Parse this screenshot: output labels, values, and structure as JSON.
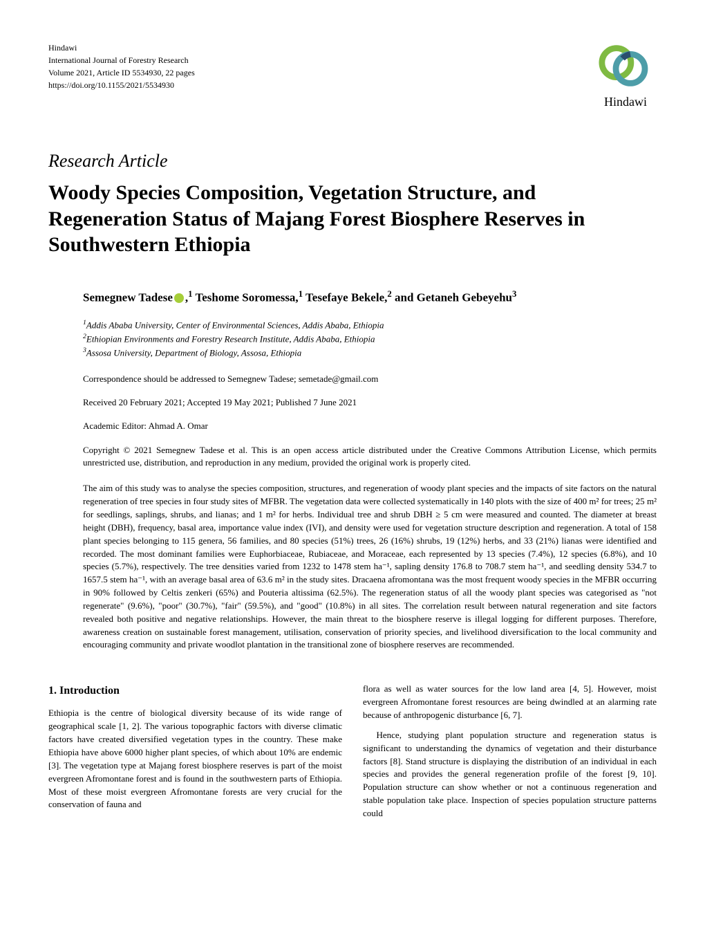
{
  "journal": {
    "publisher": "Hindawi",
    "name": "International Journal of Forestry Research",
    "volume": "Volume 2021, Article ID 5534930, 22 pages",
    "doi": "https://doi.org/10.1155/2021/5534930"
  },
  "logo": {
    "text": "Hindawi",
    "colors": {
      "green": "#7fba42",
      "teal": "#4d9da8",
      "navy": "#2a4e6e"
    }
  },
  "article_type": "Research Article",
  "title": "Woody Species Composition, Vegetation Structure, and Regeneration Status of Majang Forest Biosphere Reserves in Southwestern Ethiopia",
  "authors": {
    "text_parts": [
      "Semegnew Tadese",
      ",",
      " Teshome Soromessa,",
      " Tesefaye Bekele,",
      " and Getaneh Gebeyehu"
    ],
    "superscripts": [
      "1",
      "1",
      "2",
      "3"
    ]
  },
  "affiliations": [
    "Addis Ababa University, Center of Environmental Sciences, Addis Ababa, Ethiopia",
    "Ethiopian Environments and Forestry Research Institute, Addis Ababa, Ethiopia",
    "Assosa University, Department of Biology, Assosa, Ethiopia"
  ],
  "correspondence": "Correspondence should be addressed to Semegnew Tadese; semetade@gmail.com",
  "dates": "Received 20 February 2021; Accepted 19 May 2021; Published 7 June 2021",
  "editor": "Academic Editor: Ahmad A. Omar",
  "copyright": "Copyright © 2021 Semegnew Tadese et al. This is an open access article distributed under the Creative Commons Attribution License, which permits unrestricted use, distribution, and reproduction in any medium, provided the original work is properly cited.",
  "abstract": "The aim of this study was to analyse the species composition, structures, and regeneration of woody plant species and the impacts of site factors on the natural regeneration of tree species in four study sites of MFBR. The vegetation data were collected systematically in 140 plots with the size of 400 m² for trees; 25 m² for seedlings, saplings, shrubs, and lianas; and 1 m² for herbs. Individual tree and shrub DBH ≥ 5 cm were measured and counted. The diameter at breast height (DBH), frequency, basal area, importance value index (IVI), and density were used for vegetation structure description and regeneration. A total of 158 plant species belonging to 115 genera, 56 families, and 80 species (51%) trees, 26 (16%) shrubs, 19 (12%) herbs, and 33 (21%) lianas were identified and recorded. The most dominant families were Euphorbiaceae, Rubiaceae, and Moraceae, each represented by 13 species (7.4%), 12 species (6.8%), and 10 species (5.7%), respectively. The tree densities varied from 1232 to 1478 stem ha⁻¹, sapling density 176.8 to 708.7 stem ha⁻¹, and seedling density 534.7 to 1657.5 stem ha⁻¹, with an average basal area of 63.6 m² in the study sites. Dracaena afromontana was the most frequent woody species in the MFBR occurring in 90% followed by Celtis zenkeri (65%) and Pouteria altissima (62.5%). The regeneration status of all the woody plant species was categorised as \"not regenerate\" (9.6%), \"poor\" (30.7%), \"fair\" (59.5%), and \"good\" (10.8%) in all sites. The correlation result between natural regeneration and site factors revealed both positive and negative relationships. However, the main threat to the biosphere reserve is illegal logging for different purposes. Therefore, awareness creation on sustainable forest management, utilisation, conservation of priority species, and livelihood diversification to the local community and encouraging community and private woodlot plantation in the transitional zone of biosphere reserves are recommended.",
  "section_heading": "1. Introduction",
  "column_left": "Ethiopia is the centre of biological diversity because of its wide range of geographical scale [1, 2]. The various topographic factors with diverse climatic factors have created diversified vegetation types in the country. These make Ethiopia have above 6000 higher plant species, of which about 10% are endemic [3]. The vegetation type at Majang forest biosphere reserves is part of the moist evergreen Afromontane forest and is found in the southwestern parts of Ethiopia. Most of these moist evergreen Afromontane forests are very crucial for the conservation of fauna and",
  "column_right": "flora as well as water sources for the low land area [4, 5]. However, moist evergreen Afromontane forest resources are being dwindled at an alarming rate because of anthropogenic disturbance [6, 7].\n\nHence, studying plant population structure and regeneration status is significant to understanding the dynamics of vegetation and their disturbance factors [8]. Stand structure is displaying the distribution of an individual in each species and provides the general regeneration profile of the forest [9, 10]. Population structure can show whether or not a continuous regeneration and stable population take place. Inspection of species population structure patterns could",
  "column_right_indent": "    "
}
